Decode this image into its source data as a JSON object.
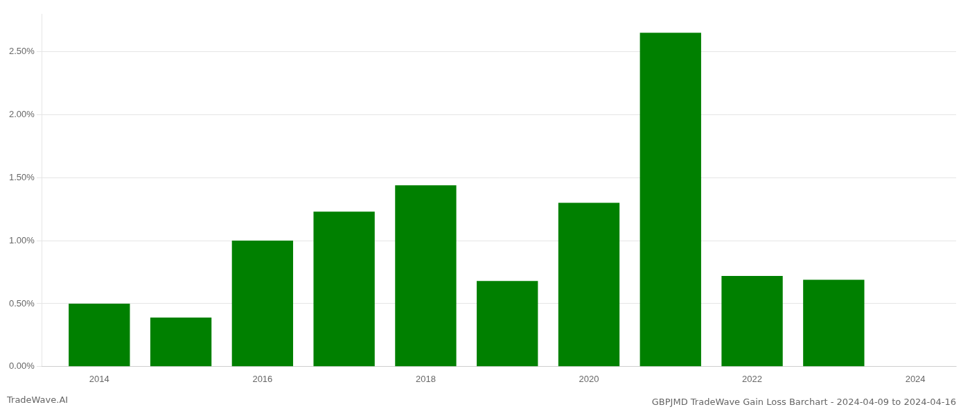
{
  "chart_data": {
    "type": "bar",
    "title": "GBPJMD TradeWave Gain Loss Barchart - 2024-04-09 to 2024-04-16",
    "annotations": [
      "TradeWave.AI"
    ],
    "x": [
      2014,
      2015,
      2016,
      2017,
      2018,
      2019,
      2020,
      2021,
      2022,
      2023
    ],
    "values": [
      0.005,
      0.0039,
      0.01,
      0.0123,
      0.0144,
      0.0068,
      0.013,
      0.0265,
      0.0072,
      0.0069
    ],
    "color": "#008000",
    "xlim": [
      2013.3,
      2024.5
    ],
    "xticks": [
      2014,
      2016,
      2018,
      2020,
      2022,
      2024
    ],
    "ylim": [
      0,
      0.028
    ],
    "yticks": [
      {
        "value": 0.0,
        "label": "0.00%"
      },
      {
        "value": 0.005,
        "label": "0.50%"
      },
      {
        "value": 0.01,
        "label": "1.00%"
      },
      {
        "value": 0.015,
        "label": "1.50%"
      },
      {
        "value": 0.02,
        "label": "2.00%"
      },
      {
        "value": 0.025,
        "label": "2.50%"
      }
    ],
    "grid": true
  }
}
